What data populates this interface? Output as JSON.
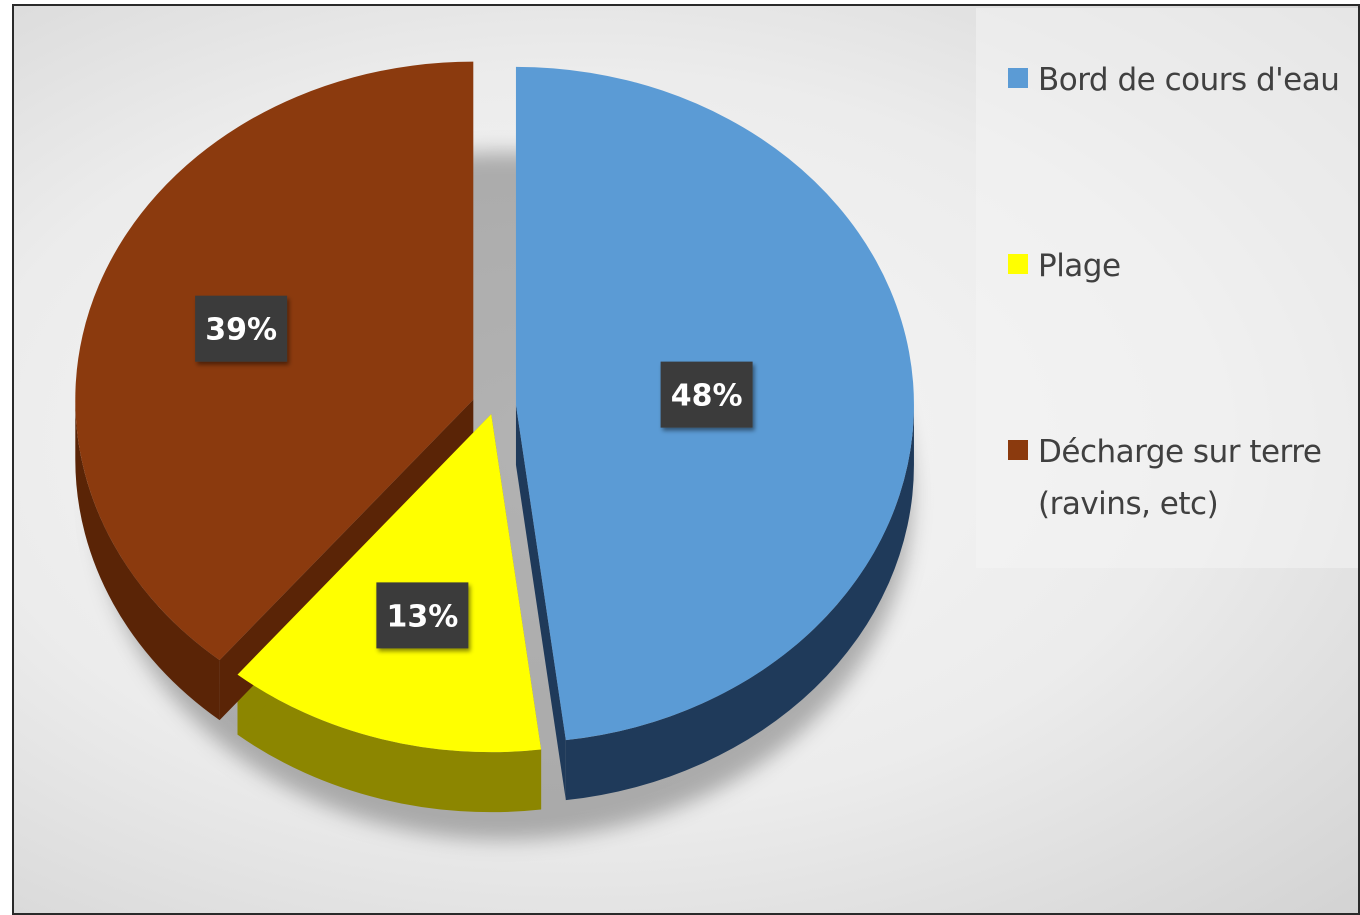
{
  "chart_data": {
    "type": "pie",
    "title": "",
    "series": [
      {
        "values": [
          48,
          13,
          39
        ],
        "labels": [
          "48%",
          "13%",
          "39%"
        ]
      }
    ],
    "categories": [
      "Bord de cours d'eau",
      "Plage",
      "Décharge sur terre (ravins, etc)"
    ],
    "legend": {
      "placement": "right",
      "entries": [
        {
          "line1": "Bord de cours d'eau",
          "line2": ""
        },
        {
          "line1": "Plage",
          "line2": ""
        },
        {
          "line1": "Décharge sur terre",
          "line2": "(ravins, etc)"
        }
      ]
    },
    "colors": [
      "#5b9bd5",
      "#ffff00",
      "#8b3a0e"
    ],
    "side_colors": [
      "#1f3a5a",
      "#8c8600",
      "#5a2406"
    ],
    "style": "3d-exploded"
  }
}
